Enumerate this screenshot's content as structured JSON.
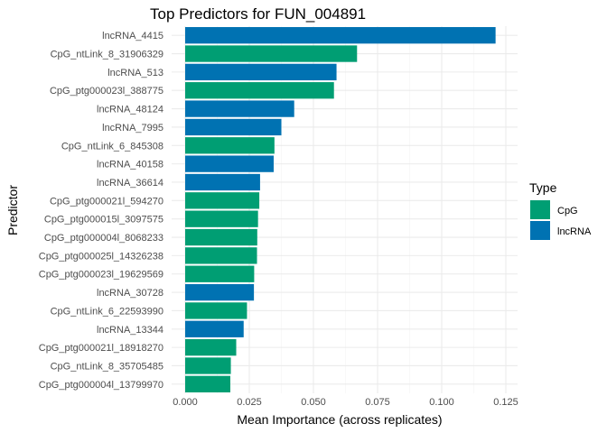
{
  "chart_data": {
    "type": "bar",
    "orientation": "horizontal",
    "title": "Top Predictors for FUN_004891",
    "xlabel": "Mean Importance (across replicates)",
    "ylabel": "Predictor",
    "xlim": [
      0,
      0.125
    ],
    "xticks": [
      "0.000",
      "0.025",
      "0.050",
      "0.075",
      "0.100",
      "0.125"
    ],
    "grid": true,
    "legend": {
      "title": "Type",
      "position": "right",
      "entries": [
        {
          "name": "CpG",
          "color": "#009E73"
        },
        {
          "name": "lncRNA",
          "color": "#0072B2"
        }
      ]
    },
    "bars": [
      {
        "label": "lncRNA_4415",
        "value": 0.121,
        "type": "lncRNA"
      },
      {
        "label": "CpG_ntLink_8_31906329",
        "value": 0.067,
        "type": "CpG"
      },
      {
        "label": "lncRNA_513",
        "value": 0.059,
        "type": "lncRNA"
      },
      {
        "label": "CpG_ptg000023l_388775",
        "value": 0.058,
        "type": "CpG"
      },
      {
        "label": "lncRNA_48124",
        "value": 0.0425,
        "type": "lncRNA"
      },
      {
        "label": "lncRNA_7995",
        "value": 0.0375,
        "type": "lncRNA"
      },
      {
        "label": "CpG_ntLink_6_845308",
        "value": 0.0348,
        "type": "CpG"
      },
      {
        "label": "lncRNA_40158",
        "value": 0.0345,
        "type": "lncRNA"
      },
      {
        "label": "lncRNA_36614",
        "value": 0.0292,
        "type": "lncRNA"
      },
      {
        "label": "CpG_ptg000021l_594270",
        "value": 0.0289,
        "type": "CpG"
      },
      {
        "label": "CpG_ptg000015l_3097575",
        "value": 0.0284,
        "type": "CpG"
      },
      {
        "label": "CpG_ptg000004l_8068233",
        "value": 0.0281,
        "type": "CpG"
      },
      {
        "label": "CpG_ptg000025l_14326238",
        "value": 0.028,
        "type": "CpG"
      },
      {
        "label": "CpG_ptg000023l_19629569",
        "value": 0.0269,
        "type": "CpG"
      },
      {
        "label": "lncRNA_30728",
        "value": 0.0268,
        "type": "lncRNA"
      },
      {
        "label": "CpG_ntLink_6_22593990",
        "value": 0.0241,
        "type": "CpG"
      },
      {
        "label": "lncRNA_13344",
        "value": 0.0228,
        "type": "lncRNA"
      },
      {
        "label": "CpG_ptg000021l_18918270",
        "value": 0.0199,
        "type": "CpG"
      },
      {
        "label": "CpG_ntLink_8_35705485",
        "value": 0.0178,
        "type": "CpG"
      },
      {
        "label": "CpG_ptg000004l_13799970",
        "value": 0.0176,
        "type": "CpG"
      }
    ]
  }
}
